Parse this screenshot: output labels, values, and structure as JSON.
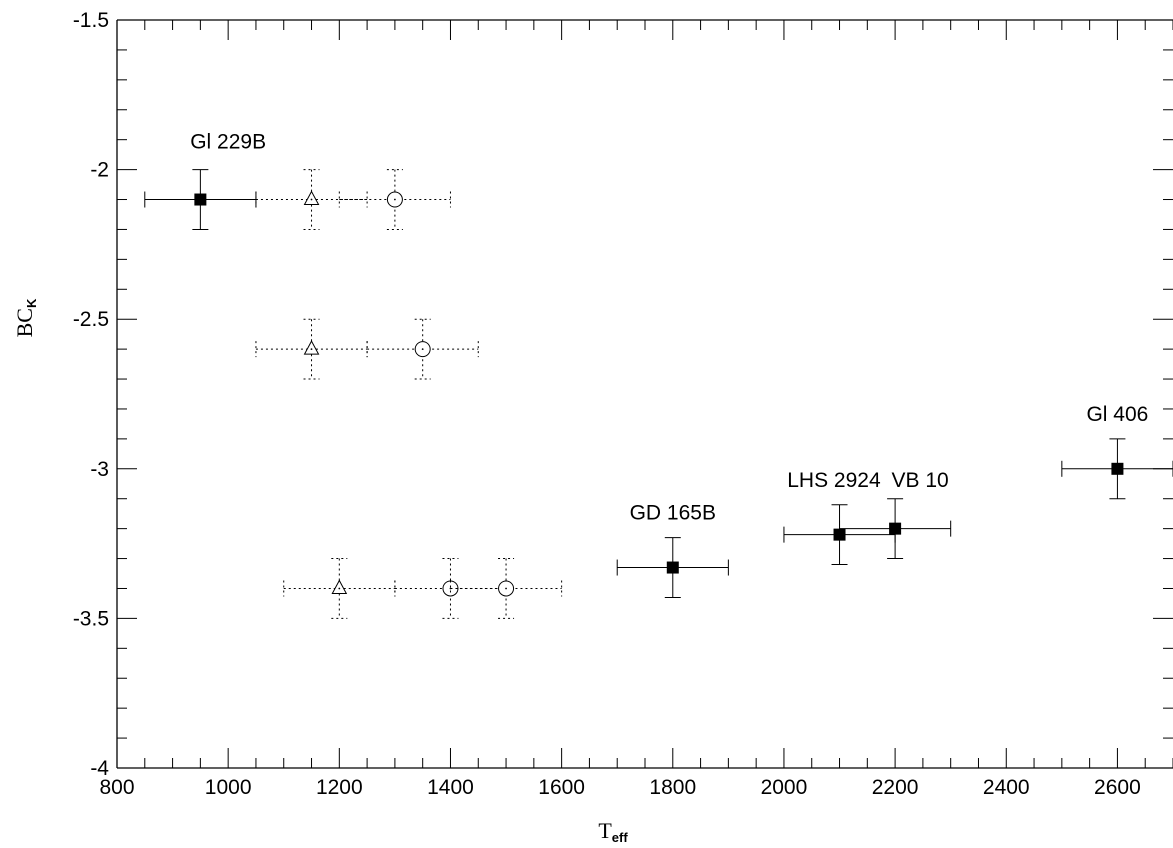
{
  "chart_data": {
    "type": "scatter",
    "xlabel": "T",
    "xlabel_sub": "eff",
    "ylabel": "BC",
    "ylabel_sub": "K",
    "xlim": [
      800,
      2700
    ],
    "ylim": [
      -4,
      -1.5
    ],
    "x_ticks": [
      "800",
      "1000",
      "1200",
      "1400",
      "1600",
      "1800",
      "2000",
      "2200",
      "2400",
      "2600"
    ],
    "y_ticks": [
      "-1.5",
      "-2",
      "-2.5",
      "-3",
      "-3.5",
      "-4"
    ],
    "grid": false,
    "series": [
      {
        "marker": "filled-square",
        "line_style": "solid",
        "points": [
          {
            "x": 950,
            "y": -2.1,
            "xerr": 100,
            "yerr": 0.1
          },
          {
            "x": 1800,
            "y": -3.33,
            "xerr": 100,
            "yerr": 0.1
          },
          {
            "x": 2100,
            "y": -3.22,
            "xerr": 100,
            "yerr": 0.1
          },
          {
            "x": 2200,
            "y": -3.2,
            "xerr": 100,
            "yerr": 0.1
          },
          {
            "x": 2600,
            "y": -3.0,
            "xerr": 100,
            "yerr": 0.1
          }
        ]
      },
      {
        "marker": "open-triangle",
        "line_style": "dotted",
        "points": [
          {
            "x": 1150,
            "y": -2.1,
            "xerr": 100,
            "yerr": 0.1
          },
          {
            "x": 1150,
            "y": -2.6,
            "xerr": 100,
            "yerr": 0.1
          },
          {
            "x": 1200,
            "y": -3.4,
            "xerr": 100,
            "yerr": 0.1
          }
        ]
      },
      {
        "marker": "open-circle",
        "line_style": "dotted",
        "points": [
          {
            "x": 1300,
            "y": -2.1,
            "xerr": 100,
            "yerr": 0.1
          },
          {
            "x": 1350,
            "y": -2.6,
            "xerr": 100,
            "yerr": 0.1
          },
          {
            "x": 1400,
            "y": -3.4,
            "xerr": 100,
            "yerr": 0.1
          },
          {
            "x": 1500,
            "y": -3.4,
            "xerr": 100,
            "yerr": 0.1
          }
        ]
      }
    ],
    "annotations": [
      {
        "text": "Gl 229B",
        "x": 1000,
        "y": -1.93
      },
      {
        "text": "GD 165B",
        "x": 1800,
        "y": -3.17
      },
      {
        "text": "LHS 2924",
        "x": 2090,
        "y": -3.06
      },
      {
        "text": "VB 10",
        "x": 2245,
        "y": -3.06
      },
      {
        "text": "Gl 406",
        "x": 2600,
        "y": -2.84
      }
    ]
  }
}
